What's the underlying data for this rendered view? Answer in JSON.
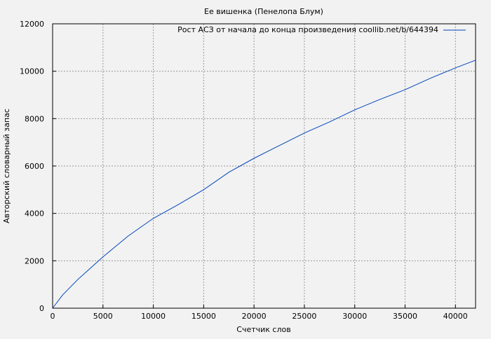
{
  "chart_data": {
    "type": "line",
    "title": "Ее вишенка (Пенелопа Блум)",
    "xlabel": "Счетчик слов",
    "ylabel": "Авторский словарный запас",
    "xlim": [
      0,
      42000
    ],
    "ylim": [
      0,
      12000
    ],
    "xticks": [
      0,
      5000,
      10000,
      15000,
      20000,
      25000,
      30000,
      35000,
      40000
    ],
    "yticks": [
      0,
      2000,
      4000,
      6000,
      8000,
      10000,
      12000
    ],
    "grid": true,
    "legend_position": "top-right",
    "series": [
      {
        "name": "Рост АСЗ от начала до конца произведения coollib.net/b/644394",
        "color": "#0044bb",
        "x": [
          0,
          1000,
          2500,
          5000,
          7500,
          10000,
          12500,
          15000,
          17500,
          20000,
          22500,
          25000,
          27500,
          30000,
          32500,
          35000,
          37500,
          40000,
          42000
        ],
        "y": [
          0,
          560,
          1210,
          2165,
          3045,
          3790,
          4375,
          5000,
          5735,
          6325,
          6860,
          7390,
          7860,
          8370,
          8810,
          9220,
          9700,
          10140,
          10465
        ]
      }
    ]
  }
}
